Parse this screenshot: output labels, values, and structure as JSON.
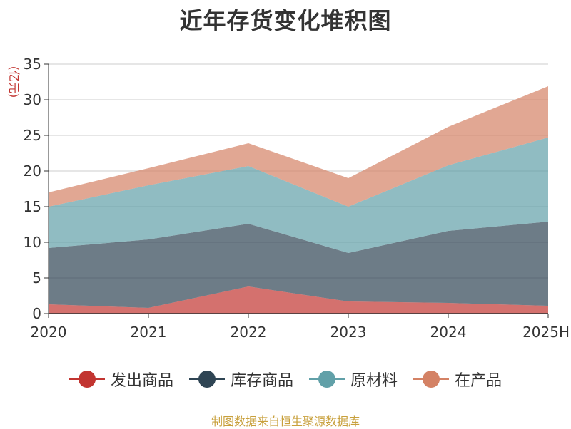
{
  "source_note": "制图数据来自恒生聚源数据库",
  "chart_data": {
    "type": "area",
    "stacked": true,
    "title": "近年存货变化堆积图",
    "ylabel": "(亿元)",
    "ylim": [
      0,
      35
    ],
    "yticks": [
      0,
      5,
      10,
      15,
      20,
      25,
      30,
      35
    ],
    "categories": [
      "2020",
      "2021",
      "2022",
      "2023",
      "2024",
      "2025H"
    ],
    "grid": true,
    "legend_position": "bottom",
    "series": [
      {
        "name": "发出商品",
        "color": "#c23531",
        "values": [
          1.3,
          0.8,
          3.8,
          1.7,
          1.5,
          1.1
        ]
      },
      {
        "name": "库存商品",
        "color": "#2f4554",
        "values": [
          7.9,
          9.6,
          8.8,
          6.8,
          10.1,
          11.8
        ]
      },
      {
        "name": "原材料",
        "color": "#61a0a8",
        "values": [
          5.8,
          7.6,
          8.1,
          6.5,
          9.2,
          11.8
        ]
      },
      {
        "name": "在产品",
        "color": "#d48265",
        "values": [
          2.0,
          2.4,
          3.2,
          4.0,
          5.4,
          7.2
        ]
      }
    ]
  }
}
